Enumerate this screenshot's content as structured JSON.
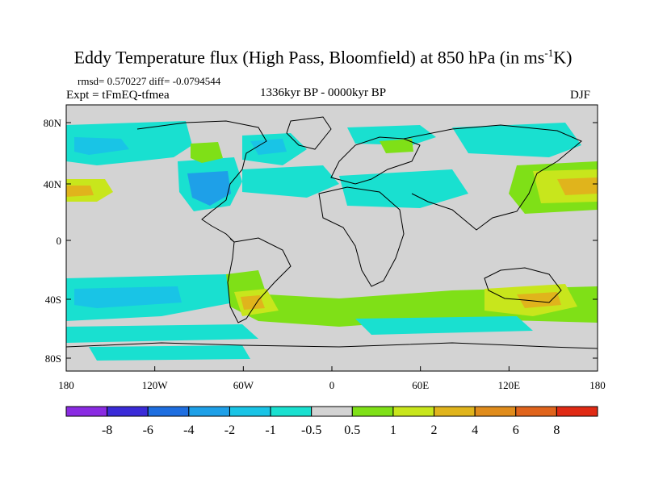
{
  "title": {
    "prefix": "Eddy Temperature flux (High Pass, Bloomfield) at 850 hPa (in ms",
    "exponent": "-1",
    "suffix": "K)"
  },
  "stats": {
    "rmsd": "rmsd= 0.570227 diff= -0.0794544",
    "expt": "Expt = tFmEQ-tfmea"
  },
  "period": "1336kyr BP - 0000kyr BP",
  "season": "DJF",
  "axes": {
    "lat_ticks": [
      "80N",
      "40N",
      "0",
      "40S",
      "80S"
    ],
    "lon_ticks": [
      "180",
      "120W",
      "60W",
      "0",
      "60E",
      "120E",
      "180"
    ]
  },
  "colorbar": {
    "labels": [
      "-8",
      "-6",
      "-4",
      "-2",
      "-1",
      "-0.5",
      "0.5",
      "1",
      "2",
      "4",
      "6",
      "8"
    ],
    "colors": [
      "#8a2be2",
      "#3a2bd8",
      "#1e6ee0",
      "#1ea0e8",
      "#19c4e6",
      "#19e0d0",
      "#d3d3d3",
      "#7fe017",
      "#c8e61c",
      "#e0b41c",
      "#e08c1c",
      "#e0641c",
      "#e02a14"
    ]
  },
  "colors": {
    "neutral": "#d3d3d3",
    "neg_light": "#19e0d0",
    "neg_mid": "#19c4e6",
    "neg_strong": "#1ea0e8",
    "pos_light": "#7fe017",
    "pos_mid": "#c8e61c",
    "pos_strong": "#e0b41c"
  }
}
